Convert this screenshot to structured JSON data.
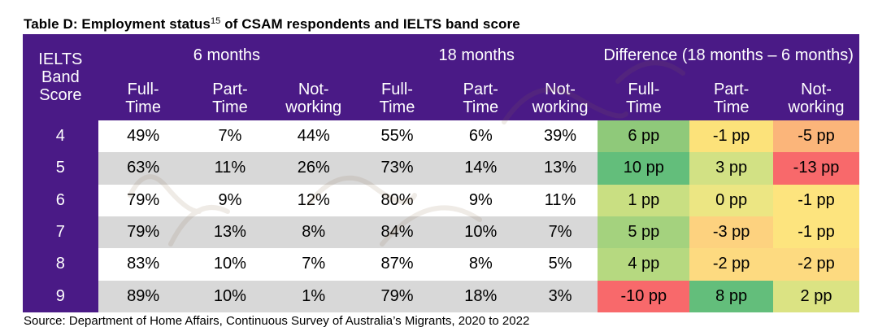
{
  "title": {
    "text_before": "Table D: Employment status",
    "superscript": "15",
    "text_after": " of CSAM respondents and IELTS band score"
  },
  "table": {
    "score_header": [
      "IELTS",
      "Band",
      "Score"
    ],
    "groups": [
      "6 months",
      "18 months",
      "Difference (18 months – 6 months)"
    ],
    "subheaders": [
      [
        "Full-",
        "Time"
      ],
      [
        "Part-",
        "Time"
      ],
      [
        "Not-",
        "working"
      ],
      [
        "Full-",
        "Time"
      ],
      [
        "Part-",
        "Time"
      ],
      [
        "Not-",
        "working"
      ],
      [
        "Full-",
        "Time"
      ],
      [
        "Part-",
        "Time"
      ],
      [
        "Not-",
        "working"
      ]
    ],
    "rows": [
      {
        "score": "4",
        "m6": [
          "49%",
          "7%",
          "44%"
        ],
        "m18": [
          "55%",
          "6%",
          "39%"
        ],
        "diff": [
          "6 pp",
          "-1 pp",
          "-5 pp"
        ]
      },
      {
        "score": "5",
        "m6": [
          "63%",
          "11%",
          "26%"
        ],
        "m18": [
          "73%",
          "14%",
          "13%"
        ],
        "diff": [
          "10 pp",
          "3 pp",
          "-13 pp"
        ]
      },
      {
        "score": "6",
        "m6": [
          "79%",
          "9%",
          "12%"
        ],
        "m18": [
          "80%",
          "9%",
          "11%"
        ],
        "diff": [
          "1 pp",
          "0 pp",
          "-1 pp"
        ]
      },
      {
        "score": "7",
        "m6": [
          "79%",
          "13%",
          "8%"
        ],
        "m18": [
          "84%",
          "10%",
          "7%"
        ],
        "diff": [
          "5 pp",
          "-3 pp",
          "-1 pp"
        ]
      },
      {
        "score": "8",
        "m6": [
          "83%",
          "10%",
          "7%"
        ],
        "m18": [
          "87%",
          "8%",
          "5%"
        ],
        "diff": [
          "4 pp",
          "-2 pp",
          "-2 pp"
        ]
      },
      {
        "score": "9",
        "m6": [
          "89%",
          "10%",
          "1%"
        ],
        "m18": [
          "79%",
          "18%",
          "3%"
        ],
        "diff": [
          "-10 pp",
          "8 pp",
          "2 pp"
        ]
      }
    ],
    "diff_colors": [
      [
        "#8fc97a",
        "#fce27a",
        "#fbb57a"
      ],
      [
        "#63be7b",
        "#d2e184",
        "#f8696b"
      ],
      [
        "#c9df82",
        "#ece683",
        "#fde47e"
      ],
      [
        "#a4d27e",
        "#fdd27f",
        "#fde47e"
      ],
      [
        "#b6d980",
        "#fdda80",
        "#fdda80"
      ],
      [
        "#f8696b",
        "#63be7b",
        "#dbe383"
      ]
    ],
    "header_bg": "#4a1a86",
    "row_alt_bg": "#d8d8d8"
  },
  "footer": "Source: Department of Home Affairs, Continuous Survey of Australia’s Migrants, 2020 to 2022"
}
